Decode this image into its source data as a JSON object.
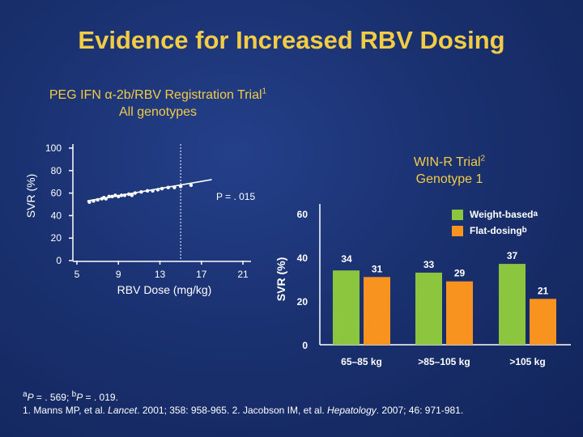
{
  "slide": {
    "title": "Evidence for Increased RBV Dosing",
    "left_chart_title_line1_a": "PEG IFN ",
    "left_chart_title_alpha": "α",
    "left_chart_title_line1_b": "-2b/RBV Registration Trial",
    "left_chart_title_ref": "1",
    "left_chart_title_line2": "All genotypes",
    "right_chart_title_line1": "WIN-R Trial",
    "right_chart_title_ref": "2",
    "right_chart_title_line2": "Genotype 1",
    "legend": [
      {
        "label": "Weight-based",
        "sup": "a",
        "color": "#8cc63f"
      },
      {
        "label": "Flat-dosing",
        "sup": "b",
        "color": "#f7931e"
      }
    ],
    "footnote_line1": {
      "a_sup": "a",
      "a_text": "P",
      "a_rest": " = . 569; ",
      "b_sup": "b",
      "b_text": "P",
      "b_rest": " = . 019."
    },
    "footnote_line2": {
      "p1": "1. Manns MP, et al. ",
      "j1": "Lancet",
      "p2": ". 2001; 358: 958-965. 2. Jacobson IM, et al. ",
      "j2": "Hepatology",
      "p3": ". 2007; 46: 971-981."
    }
  },
  "chart_data": [
    {
      "type": "scatter",
      "title": "PEG IFN α-2b/RBV Registration Trial1 All genotypes",
      "xlabel": "RBV Dose (mg/kg)",
      "ylabel": "SVR (%)",
      "x_ticks": [
        5,
        9,
        13,
        17,
        21
      ],
      "y_ticks": [
        0,
        20,
        40,
        60,
        80,
        100
      ],
      "xlim": [
        5,
        21
      ],
      "ylim": [
        0,
        100
      ],
      "annotation": "P = . 015",
      "reference_line_x": 15,
      "trend_line": {
        "x": [
          6,
          18
        ],
        "y": [
          53,
          72
        ]
      },
      "points": [
        {
          "x": 6.2,
          "y": 52
        },
        {
          "x": 6.6,
          "y": 53
        },
        {
          "x": 7.0,
          "y": 54
        },
        {
          "x": 7.4,
          "y": 55
        },
        {
          "x": 7.6,
          "y": 56
        },
        {
          "x": 7.8,
          "y": 55
        },
        {
          "x": 8.1,
          "y": 57
        },
        {
          "x": 8.4,
          "y": 57
        },
        {
          "x": 8.7,
          "y": 58
        },
        {
          "x": 9.0,
          "y": 57
        },
        {
          "x": 9.3,
          "y": 58
        },
        {
          "x": 9.6,
          "y": 58
        },
        {
          "x": 10.0,
          "y": 59
        },
        {
          "x": 10.3,
          "y": 58
        },
        {
          "x": 10.6,
          "y": 60
        },
        {
          "x": 11.2,
          "y": 61
        },
        {
          "x": 11.8,
          "y": 62
        },
        {
          "x": 12.3,
          "y": 62
        },
        {
          "x": 12.8,
          "y": 63
        },
        {
          "x": 13.2,
          "y": 64
        },
        {
          "x": 13.8,
          "y": 65
        },
        {
          "x": 14.4,
          "y": 65
        },
        {
          "x": 15.0,
          "y": 66
        },
        {
          "x": 16.0,
          "y": 67
        }
      ],
      "point_color": "#ffffff"
    },
    {
      "type": "bar",
      "ylabel": "SVR (%)",
      "categories": [
        "65–85 kg",
        ">85–105 kg",
        ">105 kg"
      ],
      "y_ticks": [
        0,
        20,
        40,
        60
      ],
      "ylim": [
        0,
        60
      ],
      "series": [
        {
          "name": "Weight-based",
          "values": [
            34,
            33,
            37
          ],
          "color": "#8cc63f"
        },
        {
          "name": "Flat-dosing",
          "values": [
            31,
            29,
            21
          ],
          "color": "#f7931e"
        }
      ]
    }
  ]
}
